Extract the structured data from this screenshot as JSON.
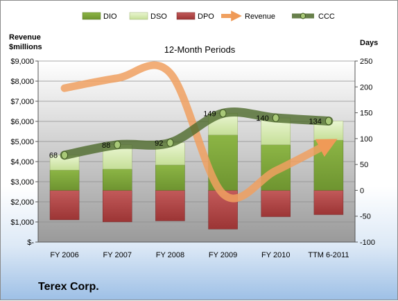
{
  "chart_data": {
    "type": "bar",
    "title": "12-Month Periods",
    "company": "Terex Corp.",
    "left_axis": {
      "label_line1": "Revenue",
      "label_line2": "$millions",
      "range": [
        0,
        9000
      ],
      "ticks": [
        "$-",
        "$1,000",
        "$2,000",
        "$3,000",
        "$4,000",
        "$5,000",
        "$6,000",
        "$7,000",
        "$8,000",
        "$9,000"
      ]
    },
    "right_axis": {
      "label": "Days",
      "range": [
        -100,
        250
      ],
      "ticks": [
        "-100",
        "-50",
        "0",
        "50",
        "100",
        "150",
        "200",
        "250"
      ]
    },
    "categories": [
      "FY 2006",
      "FY 2007",
      "FY 2008",
      "FY 2009",
      "FY 2010",
      "TTM 6-2011"
    ],
    "legend": [
      "DIO",
      "DSO",
      "DPO",
      "Revenue",
      "CCC"
    ],
    "series": [
      {
        "name": "DIO",
        "values": [
          39,
          41,
          49,
          107,
          88,
          97
        ],
        "color": "#7ea53a"
      },
      {
        "name": "DSO",
        "values": [
          29,
          47,
          43,
          42,
          52,
          37
        ],
        "color": "#d9edb5"
      },
      {
        "name": "DPO",
        "values": [
          -57,
          -61,
          -59,
          -75,
          -51,
          -47
        ],
        "color": "#b44b4b"
      },
      {
        "name": "Revenue",
        "values": [
          7650,
          8150,
          8400,
          2400,
          3550,
          4900
        ],
        "color": "#f0a060"
      },
      {
        "name": "CCC",
        "values": [
          68,
          88,
          92,
          149,
          140,
          134
        ],
        "color": "#4e6a2c"
      }
    ],
    "data_labels": [
      "68",
      "88",
      "92",
      "149",
      "140",
      "134"
    ],
    "grid": true,
    "legend_position": "top"
  }
}
